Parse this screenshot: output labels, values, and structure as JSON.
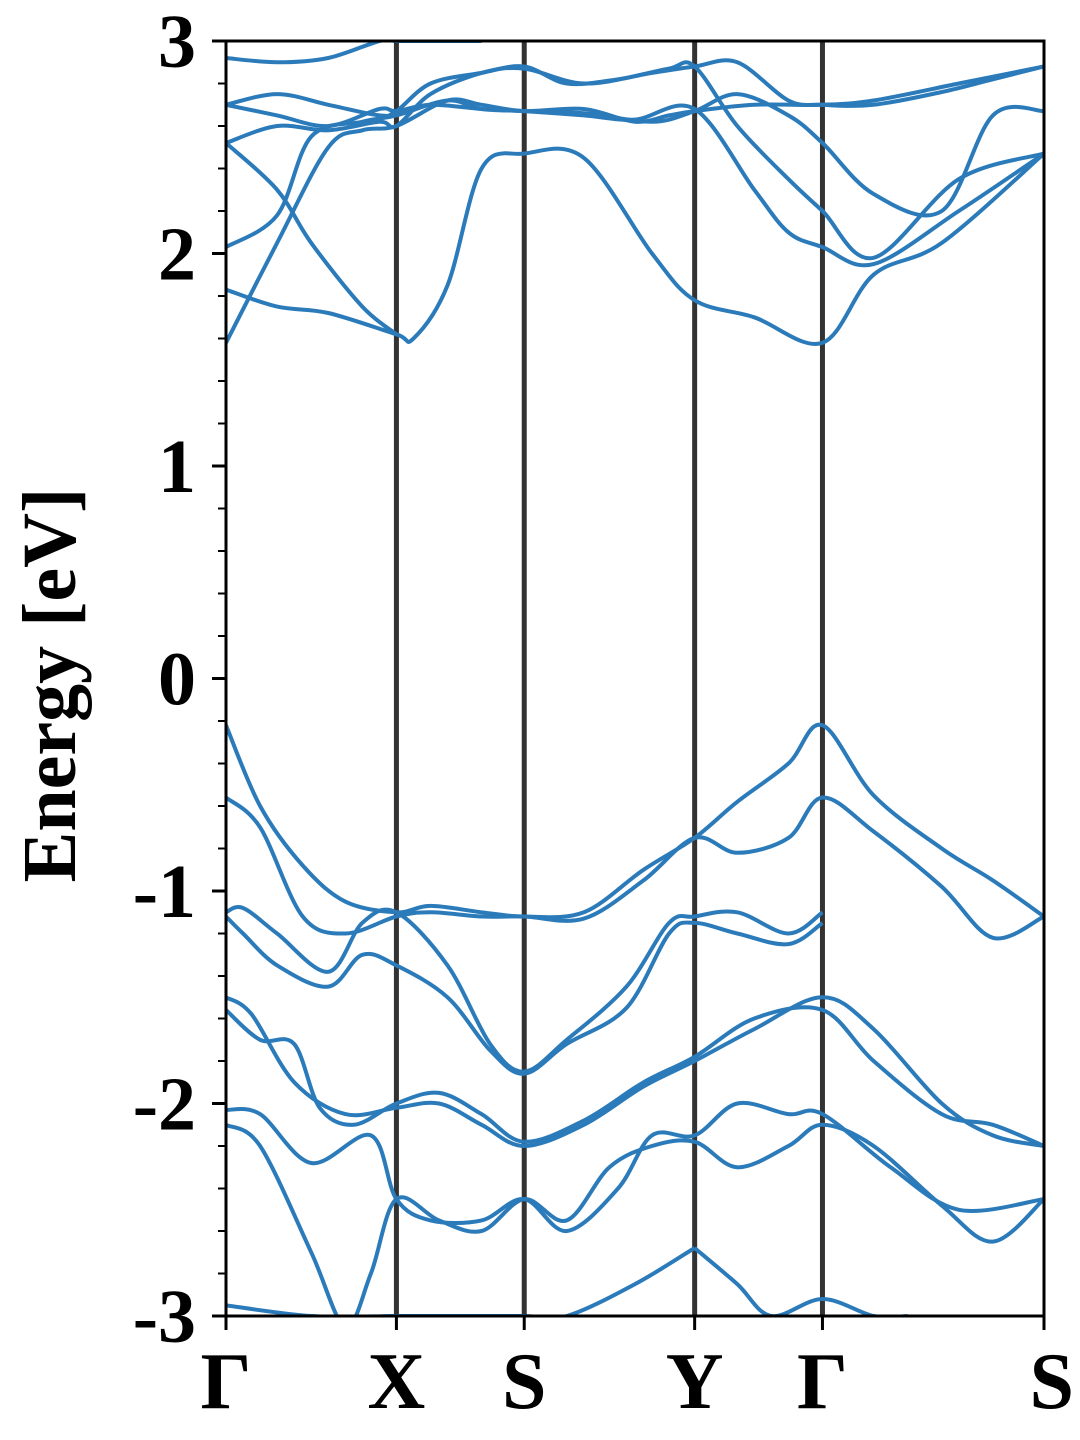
{
  "chart_data": {
    "type": "line",
    "title": "",
    "xlabel": "",
    "ylabel": "Energy [eV]",
    "ylim": [
      -3,
      3
    ],
    "yticks": [
      -3,
      -2,
      -1,
      0,
      1,
      2,
      3
    ],
    "ytick_labels": [
      "-3",
      "-2",
      "-1",
      "0",
      "1",
      "2",
      "3"
    ],
    "xlim": [
      0,
      4.8
    ],
    "high_symmetry_points": [
      {
        "label": "Γ",
        "x": 0
      },
      {
        "label": "X",
        "x": 1.0
      },
      {
        "label": "S",
        "x": 1.75
      },
      {
        "label": "Y",
        "x": 2.75
      },
      {
        "label": "Γ",
        "x": 3.5
      },
      {
        "label": "S",
        "x": 4.8
      }
    ],
    "grid": false,
    "colors": {
      "bands": "#2b7bba",
      "kpath_lines": "#333333",
      "frame": "#000000"
    },
    "series": [
      {
        "x": [
          0,
          0.2,
          0.45,
          0.7,
          1.0,
          1.2,
          1.5,
          1.75,
          2.1,
          2.45,
          2.75,
          3.0,
          3.3,
          3.5,
          3.8,
          4.2,
          4.5,
          4.8
        ],
        "values": [
          -0.22,
          -0.6,
          -0.88,
          -1.05,
          -1.1,
          -1.07,
          -1.1,
          -1.12,
          -1.1,
          -0.9,
          -0.75,
          -0.58,
          -0.4,
          -0.22,
          -0.55,
          -0.8,
          -0.95,
          -1.12
        ]
      },
      {
        "x": [
          0,
          0.2,
          0.45,
          0.7,
          1.0,
          1.2,
          1.5,
          1.75,
          2.1,
          2.45,
          2.75,
          3.0,
          3.3,
          3.5,
          3.8,
          4.2,
          4.5,
          4.8
        ],
        "values": [
          -0.56,
          -0.7,
          -1.12,
          -1.2,
          -1.12,
          -1.1,
          -1.12,
          -1.12,
          -1.13,
          -0.95,
          -0.75,
          -0.82,
          -0.75,
          -0.56,
          -0.72,
          -0.98,
          -1.22,
          -1.12
        ]
      },
      {
        "x": [
          0,
          0.1,
          0.3,
          0.6,
          0.8,
          1.0,
          1.3,
          1.55,
          1.75,
          2.0,
          2.35,
          2.6,
          2.75,
          3.0,
          3.3,
          3.5
        ],
        "values": [
          -1.1,
          -1.08,
          -1.2,
          -1.38,
          -1.15,
          -1.1,
          -1.35,
          -1.72,
          -1.85,
          -1.7,
          -1.45,
          -1.15,
          -1.12,
          -1.1,
          -1.2,
          -1.1
        ]
      },
      {
        "x": [
          0,
          0.1,
          0.3,
          0.6,
          0.8,
          1.0,
          1.3,
          1.55,
          1.75,
          2.0,
          2.35,
          2.6,
          2.75,
          3.0,
          3.3,
          3.5
        ],
        "values": [
          -1.12,
          -1.2,
          -1.35,
          -1.45,
          -1.3,
          -1.35,
          -1.5,
          -1.75,
          -1.86,
          -1.72,
          -1.55,
          -1.2,
          -1.15,
          -1.2,
          -1.25,
          -1.15
        ]
      },
      {
        "x": [
          0,
          0.15,
          0.4,
          0.7,
          1.0,
          1.25,
          1.5,
          1.75,
          2.1,
          2.45,
          2.75,
          3.1,
          3.5,
          3.8,
          4.2,
          4.5,
          4.8
        ],
        "values": [
          -1.5,
          -1.58,
          -1.9,
          -2.05,
          -2.02,
          -2.0,
          -2.1,
          -2.2,
          -2.1,
          -1.92,
          -1.8,
          -1.65,
          -1.5,
          -1.65,
          -2.0,
          -2.15,
          -2.2
        ]
      },
      {
        "x": [
          0,
          0.2,
          0.4,
          0.55,
          0.75,
          1.0,
          1.25,
          1.5,
          1.75,
          2.1,
          2.45,
          2.75,
          3.1,
          3.5,
          3.8,
          4.2,
          4.5,
          4.8
        ],
        "values": [
          -1.56,
          -1.7,
          -1.72,
          -2.02,
          -2.1,
          -2.0,
          -1.95,
          -2.05,
          -2.18,
          -2.08,
          -1.9,
          -1.78,
          -1.6,
          -1.56,
          -1.8,
          -2.05,
          -2.1,
          -2.2
        ]
      },
      {
        "x": [
          0,
          0.2,
          0.5,
          0.85,
          1.0,
          1.2,
          1.5,
          1.75,
          2.0,
          2.3,
          2.5,
          2.75,
          3.0,
          3.3,
          3.5,
          3.9,
          4.3,
          4.8
        ],
        "values": [
          -2.03,
          -2.05,
          -2.28,
          -2.15,
          -2.45,
          -2.55,
          -2.55,
          -2.45,
          -2.6,
          -2.4,
          -2.15,
          -2.15,
          -2.0,
          -2.05,
          -2.05,
          -2.3,
          -2.5,
          -2.45
        ]
      },
      {
        "x": [
          0,
          0.2,
          0.5,
          0.7,
          0.85,
          1.0,
          1.25,
          1.5,
          1.75,
          2.0,
          2.25,
          2.5,
          2.75,
          3.0,
          3.3,
          3.5,
          3.8,
          4.2,
          4.5,
          4.8
        ],
        "values": [
          -2.1,
          -2.2,
          -2.7,
          -3.05,
          -2.8,
          -2.45,
          -2.55,
          -2.6,
          -2.45,
          -2.55,
          -2.3,
          -2.2,
          -2.18,
          -2.3,
          -2.2,
          -2.1,
          -2.2,
          -2.48,
          -2.65,
          -2.45
        ]
      },
      {
        "x": [
          0,
          0.5,
          1.0,
          1.2,
          1.5,
          1.75,
          2.0,
          2.4,
          2.75
        ],
        "values": [
          -2.95,
          -3.0,
          -3.0,
          -3.0,
          -3.0,
          -3.0,
          -3.0,
          -2.85,
          -2.68
        ]
      },
      {
        "x": [
          2.75,
          3.0,
          3.2,
          3.5,
          3.8,
          4.0
        ],
        "values": [
          -2.68,
          -2.85,
          -3.0,
          -2.92,
          -3.0,
          -3.0
        ]
      },
      {
        "x": [
          0,
          0.3,
          0.6,
          0.8,
          1.0,
          1.3,
          1.5,
          1.75,
          2.1,
          2.4,
          2.6,
          2.75,
          3.1,
          3.5,
          3.8,
          4.3,
          4.8
        ],
        "values": [
          1.58,
          2.05,
          2.5,
          2.58,
          2.6,
          2.72,
          2.7,
          2.67,
          2.68,
          2.62,
          2.65,
          2.67,
          2.7,
          2.7,
          2.72,
          2.8,
          2.88
        ]
      },
      {
        "x": [
          0,
          0.3,
          0.5,
          0.8,
          1.0,
          1.3,
          1.5,
          1.75,
          2.1,
          2.4,
          2.75,
          3.1,
          3.3,
          3.5,
          3.8,
          4.3,
          4.8
        ],
        "values": [
          2.03,
          2.18,
          2.55,
          2.62,
          2.65,
          2.72,
          2.68,
          2.67,
          2.65,
          2.63,
          2.68,
          2.3,
          2.1,
          2.03,
          1.95,
          2.2,
          2.47
        ]
      },
      {
        "x": [
          0,
          0.3,
          0.6,
          1.0,
          1.1,
          1.3,
          1.5,
          1.75,
          2.1,
          2.5,
          2.75,
          3.1,
          3.5,
          3.8,
          4.2,
          4.8
        ],
        "values": [
          1.83,
          1.75,
          1.72,
          1.62,
          1.6,
          1.85,
          2.4,
          2.47,
          2.45,
          2.0,
          1.78,
          1.7,
          1.58,
          1.9,
          2.05,
          2.47
        ]
      },
      {
        "x": [
          0,
          0.3,
          0.5,
          0.8,
          1.0
        ],
        "values": [
          2.52,
          2.3,
          2.05,
          1.75,
          1.62
        ]
      },
      {
        "x": [
          0,
          0.3,
          0.6,
          0.9,
          1.0,
          1.2,
          1.5,
          1.75,
          2.0,
          2.3,
          2.6,
          2.75,
          3.0,
          3.3,
          3.5,
          3.8,
          4.3,
          4.8
        ],
        "values": [
          2.7,
          2.75,
          2.7,
          2.65,
          2.67,
          2.8,
          2.85,
          2.88,
          2.8,
          2.82,
          2.87,
          2.88,
          2.6,
          2.35,
          2.2,
          1.98,
          2.35,
          2.47
        ]
      },
      {
        "x": [
          0,
          0.3,
          0.6,
          0.9,
          1.0,
          1.2,
          1.5,
          1.75,
          2.1,
          2.5,
          2.75,
          3.0,
          3.3,
          3.5,
          3.8,
          4.2,
          4.5,
          4.8
        ],
        "values": [
          2.52,
          2.6,
          2.58,
          2.62,
          2.6,
          2.75,
          2.85,
          2.87,
          2.8,
          2.85,
          2.88,
          2.9,
          2.72,
          2.7,
          2.7,
          2.76,
          2.82,
          2.88
        ]
      },
      {
        "x": [
          0,
          0.3,
          0.6,
          0.9,
          1.0,
          1.2,
          1.5,
          1.75,
          2.1,
          2.5,
          2.75,
          3.0,
          3.3,
          3.5,
          3.8,
          4.2,
          4.5,
          4.8
        ],
        "values": [
          2.7,
          2.65,
          2.6,
          2.68,
          2.67,
          2.7,
          2.68,
          2.67,
          2.66,
          2.62,
          2.67,
          2.75,
          2.65,
          2.52,
          2.28,
          2.2,
          2.65,
          2.67
        ]
      },
      {
        "x": [
          0,
          0.3,
          0.6,
          0.9,
          1.0,
          1.1,
          1.3,
          1.5
        ],
        "values": [
          2.92,
          2.9,
          2.92,
          3.0,
          3.0,
          3.0,
          3.0,
          3.0
        ]
      }
    ]
  }
}
